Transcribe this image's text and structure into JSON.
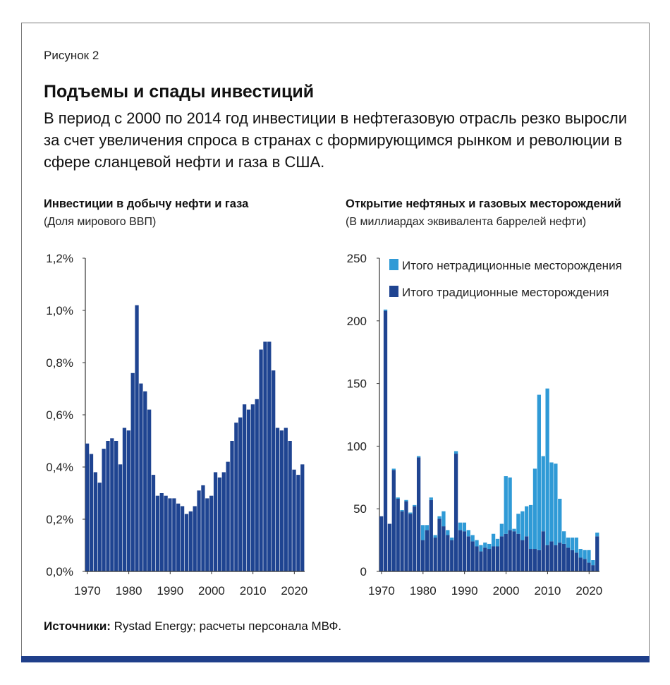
{
  "figure_label": "Рисунок 2",
  "headline": "Подъемы и спады инвестиций",
  "subheadline": "В период с 2000 по 2014 год инвестиции в нефтегазовую отрасль резко выросли за счет увеличения спроса в странах с формирующимся рынком и революции в сфере сланцевой нефти и газа в США.",
  "source_label": "Источники:",
  "source_text": " Rystad Energy; расчеты персонала МВФ.",
  "colors": {
    "dark_blue": "#1f4491",
    "light_blue": "#2f9ad6",
    "rule": "#1f3f8a"
  },
  "chart_data": [
    {
      "type": "bar",
      "title": "Инвестиции в добычу нефти и газа",
      "subtitle": "(Доля мирового ВВП)",
      "x": [
        1970,
        1971,
        1972,
        1973,
        1974,
        1975,
        1976,
        1977,
        1978,
        1979,
        1980,
        1981,
        1982,
        1983,
        1984,
        1985,
        1986,
        1987,
        1988,
        1989,
        1990,
        1991,
        1992,
        1993,
        1994,
        1995,
        1996,
        1997,
        1998,
        1999,
        2000,
        2001,
        2002,
        2003,
        2004,
        2005,
        2006,
        2007,
        2008,
        2009,
        2010,
        2011,
        2012,
        2013,
        2014,
        2015,
        2016,
        2017,
        2018,
        2019,
        2020,
        2021,
        2022
      ],
      "values": [
        0.49,
        0.45,
        0.38,
        0.34,
        0.47,
        0.5,
        0.51,
        0.5,
        0.41,
        0.55,
        0.54,
        0.76,
        1.02,
        0.72,
        0.69,
        0.62,
        0.37,
        0.29,
        0.3,
        0.29,
        0.28,
        0.28,
        0.26,
        0.25,
        0.22,
        0.23,
        0.25,
        0.31,
        0.33,
        0.28,
        0.29,
        0.38,
        0.36,
        0.38,
        0.42,
        0.5,
        0.57,
        0.59,
        0.64,
        0.62,
        0.64,
        0.66,
        0.85,
        0.88,
        0.88,
        0.77,
        0.55,
        0.54,
        0.55,
        0.5,
        0.39,
        0.37,
        0.41
      ],
      "ylim": [
        0,
        1.2
      ],
      "yticks": [
        "0,0%",
        "0,2%",
        "0,4%",
        "0,6%",
        "0,8%",
        "1,0%",
        "1,2%"
      ],
      "xticks": [
        "1970",
        "1980",
        "1990",
        "2000",
        "2010",
        "2020"
      ]
    },
    {
      "type": "bar",
      "stacked": true,
      "title": "Открытие нефтяных и газовых месторождений",
      "subtitle": "(В миллиардах эквивалента баррелей нефти)",
      "x": [
        1970,
        1971,
        1972,
        1973,
        1974,
        1975,
        1976,
        1977,
        1978,
        1979,
        1980,
        1981,
        1982,
        1983,
        1984,
        1985,
        1986,
        1987,
        1988,
        1989,
        1990,
        1991,
        1992,
        1993,
        1994,
        1995,
        1996,
        1997,
        1998,
        1999,
        2000,
        2001,
        2002,
        2003,
        2004,
        2005,
        2006,
        2007,
        2008,
        2009,
        2010,
        2011,
        2012,
        2013,
        2014,
        2015,
        2016,
        2017,
        2018,
        2019,
        2020,
        2021,
        2022
      ],
      "series": [
        {
          "name": "Итого традиционные месторождения",
          "values": [
            44,
            208,
            38,
            81,
            58,
            48,
            56,
            46,
            52,
            91,
            25,
            33,
            57,
            27,
            42,
            36,
            29,
            25,
            94,
            33,
            32,
            28,
            24,
            20,
            16,
            19,
            18,
            20,
            20,
            28,
            30,
            33,
            32,
            30,
            25,
            28,
            18,
            18,
            17,
            32,
            21,
            24,
            21,
            23,
            22,
            19,
            17,
            15,
            11,
            10,
            7,
            5,
            28
          ]
        },
        {
          "name": "Итого нетрадиционные месторождения",
          "values": [
            0,
            1,
            0,
            1,
            1,
            1,
            1,
            1,
            1,
            1,
            12,
            4,
            2,
            2,
            2,
            12,
            4,
            2,
            2,
            6,
            7,
            5,
            5,
            5,
            5,
            4,
            4,
            10,
            6,
            10,
            46,
            42,
            2,
            16,
            23,
            24,
            35,
            64,
            124,
            60,
            125,
            63,
            65,
            35,
            10,
            8,
            10,
            12,
            7,
            7,
            10,
            4,
            3
          ]
        }
      ],
      "ylim": [
        0,
        250
      ],
      "yticks": [
        "0",
        "50",
        "100",
        "150",
        "200",
        "250"
      ],
      "xticks": [
        "1970",
        "1980",
        "1990",
        "2000",
        "2010",
        "2020"
      ],
      "legend": [
        "Итого нетрадиционные месторождения",
        "Итого традиционные месторождения"
      ]
    }
  ]
}
